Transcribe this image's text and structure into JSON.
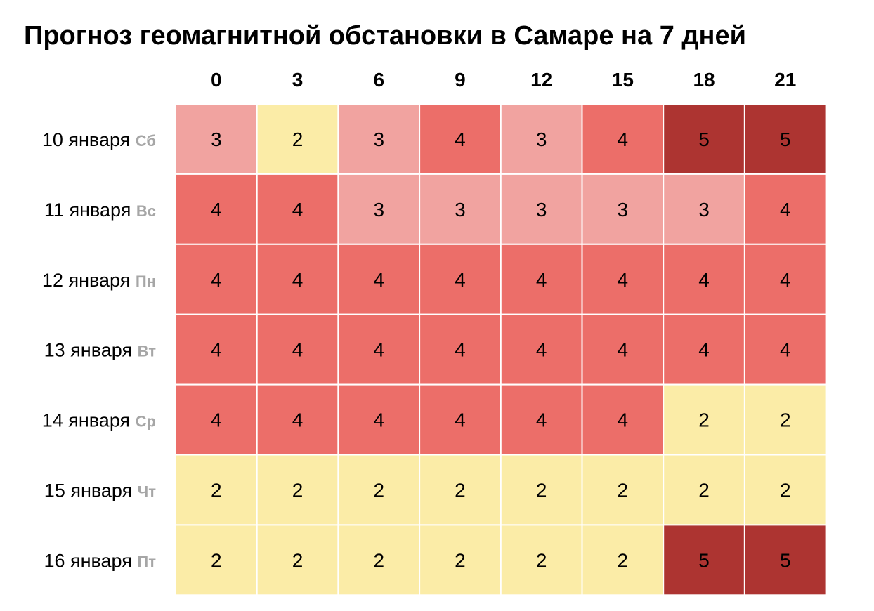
{
  "chart_data": {
    "type": "heatmap",
    "title": "Прогноз геомагнитной обстановки в Самаре на 7 дней",
    "columns": [
      "0",
      "3",
      "6",
      "9",
      "12",
      "15",
      "18",
      "21"
    ],
    "rows": [
      {
        "date": "10 января",
        "weekday": "Сб"
      },
      {
        "date": "11 января",
        "weekday": "Вс"
      },
      {
        "date": "12 января",
        "weekday": "Пн"
      },
      {
        "date": "13 января",
        "weekday": "Вт"
      },
      {
        "date": "14 января",
        "weekday": "Ср"
      },
      {
        "date": "15 января",
        "weekday": "Чт"
      },
      {
        "date": "16 января",
        "weekday": "Пт"
      }
    ],
    "values": [
      [
        3,
        2,
        3,
        4,
        3,
        4,
        5,
        5
      ],
      [
        4,
        4,
        3,
        3,
        3,
        3,
        3,
        4
      ],
      [
        4,
        4,
        4,
        4,
        4,
        4,
        4,
        4
      ],
      [
        4,
        4,
        4,
        4,
        4,
        4,
        4,
        4
      ],
      [
        4,
        4,
        4,
        4,
        4,
        4,
        2,
        2
      ],
      [
        2,
        2,
        2,
        2,
        2,
        2,
        2,
        2
      ],
      [
        2,
        2,
        2,
        2,
        2,
        2,
        5,
        5
      ]
    ],
    "color_scale": {
      "2": "#fbeca7",
      "3": "#f1a3a0",
      "4": "#ec6e69",
      "5": "#ad3431"
    },
    "weekday_color": "#a6a6a6",
    "grid": false,
    "legend": "none"
  }
}
